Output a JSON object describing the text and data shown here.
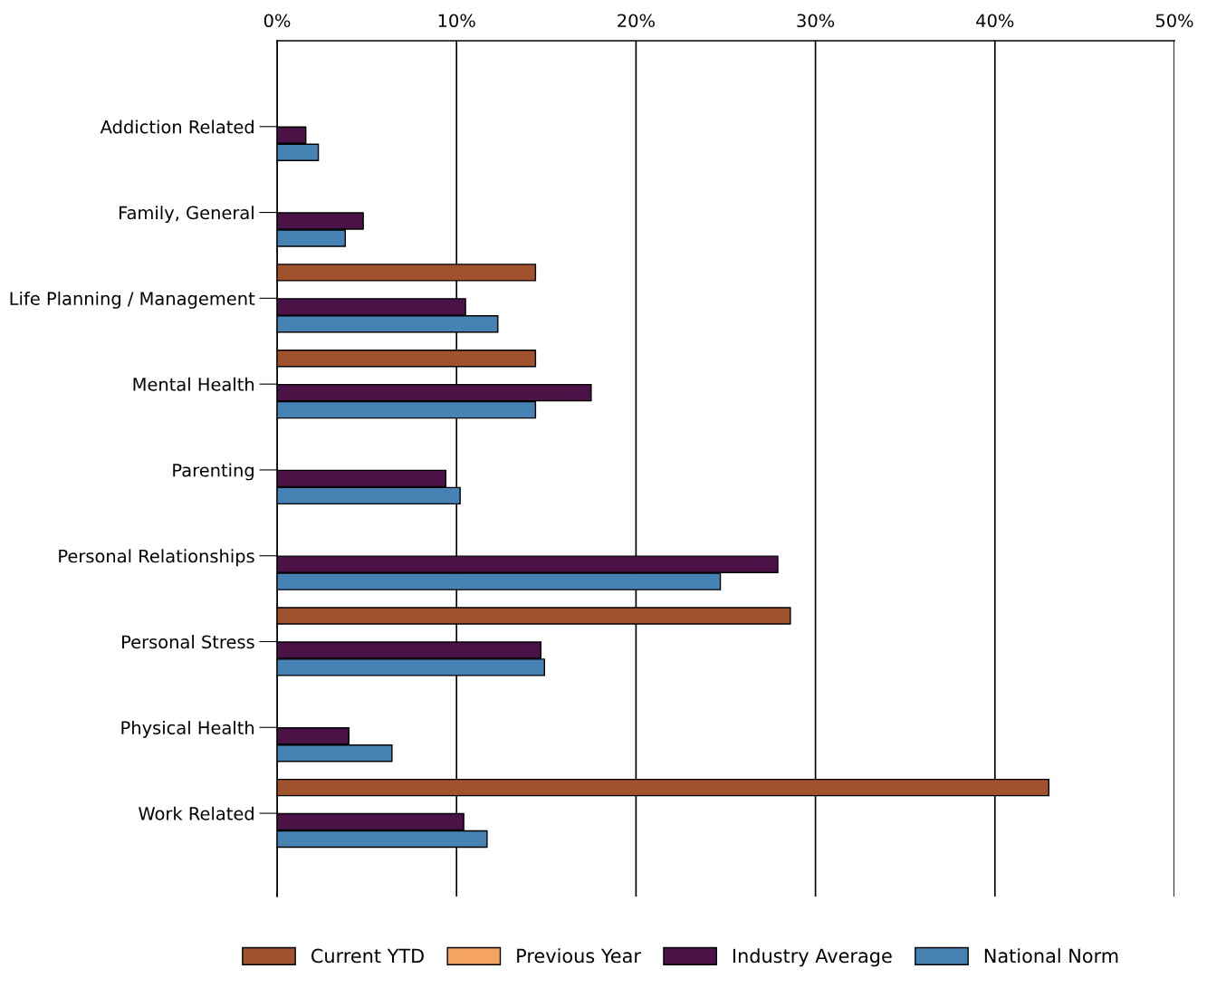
{
  "chart_data": {
    "type": "bar",
    "orientation": "horizontal",
    "categories": [
      "Addiction Related",
      "Family, General",
      "Life Planning / Management",
      "Mental Health",
      "Parenting",
      "Personal Relationships",
      "Personal Stress",
      "Physical Health",
      "Work Related"
    ],
    "series": [
      {
        "name": "Current YTD",
        "color": "#a0522d",
        "values": [
          null,
          null,
          14.4,
          14.4,
          null,
          null,
          28.6,
          null,
          43.0
        ]
      },
      {
        "name": "Previous Year",
        "color": "#f4a460",
        "values": [
          null,
          null,
          null,
          null,
          null,
          null,
          null,
          null,
          null
        ]
      },
      {
        "name": "Industry Average",
        "color": "#4b1248",
        "values": [
          1.6,
          4.8,
          10.5,
          17.5,
          9.4,
          27.9,
          14.7,
          4.0,
          10.4
        ]
      },
      {
        "name": "National Norm",
        "color": "#4682b4",
        "values": [
          2.3,
          3.8,
          12.3,
          14.4,
          10.2,
          24.7,
          14.9,
          6.4,
          11.7
        ]
      }
    ],
    "xlim": [
      0,
      50
    ],
    "xticks": [
      {
        "value": 0,
        "label": "0%"
      },
      {
        "value": 10,
        "label": "10%"
      },
      {
        "value": 20,
        "label": "20%"
      },
      {
        "value": 30,
        "label": "30%"
      },
      {
        "value": 40,
        "label": "40%"
      },
      {
        "value": 50,
        "label": "50%"
      }
    ],
    "grid": "x",
    "legend": "bottom"
  }
}
